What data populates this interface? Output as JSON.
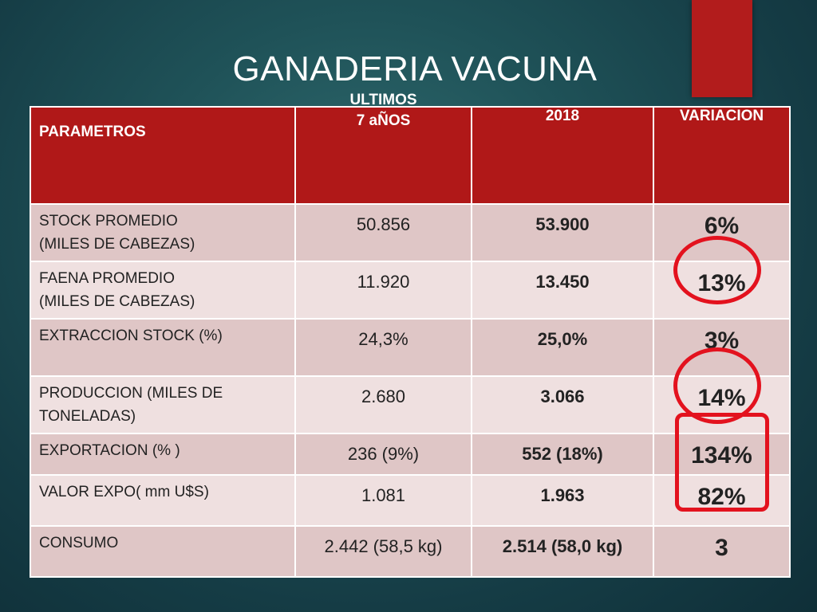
{
  "slide": {
    "title": "GANADERIA VACUNA"
  },
  "table": {
    "headers": {
      "parametros": "PARAMETROS",
      "ultimos_line1": "ULTIMOS",
      "ultimos_line2": "7 aÑOS",
      "year": "2018",
      "variacion": "VARIACION"
    },
    "rows": [
      {
        "param_line1": "STOCK PROMEDIO",
        "param_line2": "(MILES DE CABEZAS)",
        "ultimos": "50.856",
        "y2018": "53.900",
        "variacion": "6%"
      },
      {
        "param_line1": "FAENA PROMEDIO",
        "param_line2": "(MILES DE CABEZAS)",
        "ultimos": "11.920",
        "y2018": "13.450",
        "variacion": "13%"
      },
      {
        "param_line1": "EXTRACCION STOCK (%)",
        "param_line2": "",
        "ultimos": "24,3%",
        "y2018": "25,0%",
        "variacion": "3%"
      },
      {
        "param_line1": "PRODUCCION (MILES DE",
        "param_line2": "TONELADAS)",
        "ultimos": "2.680",
        "y2018": "3.066",
        "variacion": "14%"
      },
      {
        "param_line1": "EXPORTACION (% )",
        "param_line2": "",
        "ultimos": "236 (9%)",
        "y2018": "552 (18%)",
        "variacion": "134%"
      },
      {
        "param_line1": "VALOR EXPO( mm U$S)",
        "param_line2": "",
        "ultimos": "1.081",
        "y2018": "1.963",
        "variacion": "82%"
      },
      {
        "param_line1": "CONSUMO",
        "param_line2": "",
        "ultimos": "2.442 (58,5 kg)",
        "y2018": "2.514 (58,0 kg)",
        "variacion": "3"
      }
    ]
  },
  "highlight_color": "#e3121e",
  "accent_color": "#b21c1c"
}
